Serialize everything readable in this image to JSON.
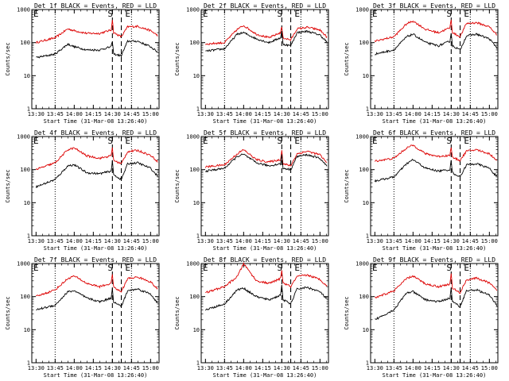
{
  "figure": {
    "x_tick_labels": [
      "13:30",
      "13:45",
      "14:00",
      "14:15",
      "14:30",
      "14:45",
      "15:00"
    ],
    "y_tick_labels": [
      "1",
      "10",
      "100",
      "1000"
    ],
    "ylabel": "Counts/sec",
    "xlabel": "Start Time (31-Mar-08 13:26:40)",
    "markers": {
      "left": "E",
      "mid": "S",
      "right": "E"
    }
  },
  "colors": {
    "events": "#000000",
    "lld": "#dd0000",
    "axes": "#000000"
  },
  "chart_data": [
    {
      "type": "line",
      "title": "Det 1f BLACK = Events, RED = LLD",
      "xlabel": "Start Time (31-Mar-08 13:26:40)",
      "ylabel": "Counts/sec",
      "y_scale": "log",
      "ylim": [
        1,
        1000
      ],
      "x_range": [
        "13:26:40",
        "15:06:40"
      ],
      "x": [
        "13:30",
        "13:45",
        "13:55",
        "14:00",
        "14:10",
        "14:20",
        "14:29",
        "14:30",
        "14:31",
        "14:37",
        "14:42",
        "14:50",
        "15:00",
        "15:06"
      ],
      "series": [
        {
          "name": "Events",
          "values": [
            35,
            45,
            90,
            75,
            60,
            60,
            75,
            110,
            45,
            40,
            110,
            110,
            75,
            50
          ]
        },
        {
          "name": "LLD",
          "values": [
            100,
            140,
            260,
            230,
            190,
            190,
            240,
            500,
            200,
            150,
            300,
            310,
            230,
            160
          ]
        }
      ],
      "vlines": {
        "dotted": [
          "13:45",
          "14:45"
        ],
        "dashed": [
          "14:30",
          "14:37"
        ]
      }
    },
    {
      "type": "line",
      "title": "Det 2f BLACK = Events, RED = LLD",
      "xlabel": "Start Time (31-Mar-08 13:26:40)",
      "ylabel": "Counts/sec",
      "y_scale": "log",
      "ylim": [
        1,
        1000
      ],
      "x_range": [
        "13:26:40",
        "15:06:40"
      ],
      "x": [
        "13:30",
        "13:45",
        "13:55",
        "14:00",
        "14:10",
        "14:20",
        "14:29",
        "14:30",
        "14:31",
        "14:37",
        "14:42",
        "14:50",
        "15:00",
        "15:06"
      ],
      "series": [
        {
          "name": "Events",
          "values": [
            55,
            65,
            180,
            200,
            130,
            100,
            140,
            220,
            90,
            80,
            200,
            220,
            170,
            100
          ]
        },
        {
          "name": "LLD",
          "values": [
            90,
            100,
            250,
            330,
            180,
            140,
            200,
            300,
            140,
            120,
            260,
            290,
            240,
            140
          ]
        }
      ],
      "vlines": {
        "dotted": [
          "13:45",
          "14:45"
        ],
        "dashed": [
          "14:30",
          "14:37"
        ]
      }
    },
    {
      "type": "line",
      "title": "Det 3f BLACK = Events, RED = LLD",
      "xlabel": "Start Time (31-Mar-08 13:26:40)",
      "ylabel": "Counts/sec",
      "y_scale": "log",
      "ylim": [
        1,
        1000
      ],
      "x_range": [
        "13:26:40",
        "15:06:40"
      ],
      "x": [
        "13:30",
        "13:45",
        "13:55",
        "14:00",
        "14:10",
        "14:20",
        "14:29",
        "14:30",
        "14:31",
        "14:37",
        "14:42",
        "14:50",
        "15:00",
        "15:06"
      ],
      "series": [
        {
          "name": "Events",
          "values": [
            45,
            60,
            150,
            180,
            100,
            80,
            110,
            200,
            80,
            60,
            160,
            180,
            130,
            70
          ]
        },
        {
          "name": "LLD",
          "values": [
            110,
            150,
            370,
            450,
            250,
            200,
            280,
            500,
            200,
            150,
            380,
            400,
            300,
            170
          ]
        }
      ],
      "vlines": {
        "dotted": [
          "13:45",
          "14:45"
        ],
        "dashed": [
          "14:30",
          "14:37"
        ]
      }
    },
    {
      "type": "line",
      "title": "Det 4f BLACK = Events, RED = LLD",
      "xlabel": "Start Time (31-Mar-08 13:26:40)",
      "ylabel": "Counts/sec",
      "y_scale": "log",
      "ylim": [
        1,
        1000
      ],
      "x_range": [
        "13:26:40",
        "15:06:40"
      ],
      "x": [
        "13:30",
        "13:45",
        "13:55",
        "14:00",
        "14:10",
        "14:20",
        "14:29",
        "14:30",
        "14:31",
        "14:37",
        "14:42",
        "14:50",
        "15:00",
        "15:06"
      ],
      "series": [
        {
          "name": "Events",
          "values": [
            30,
            50,
            130,
            140,
            80,
            75,
            90,
            180,
            70,
            50,
            150,
            160,
            110,
            60
          ]
        },
        {
          "name": "LLD",
          "values": [
            100,
            160,
            400,
            450,
            260,
            220,
            260,
            480,
            190,
            150,
            350,
            380,
            270,
            170
          ]
        }
      ],
      "vlines": {
        "dotted": [
          "13:45",
          "14:45"
        ],
        "dashed": [
          "14:30",
          "14:37"
        ]
      }
    },
    {
      "type": "line",
      "title": "Det 5f BLACK = Events, RED = LLD",
      "xlabel": "Start Time (31-Mar-08 13:26:40)",
      "ylabel": "Counts/sec",
      "y_scale": "log",
      "ylim": [
        1,
        1000
      ],
      "x_range": [
        "13:26:40",
        "15:06:40"
      ],
      "x": [
        "13:30",
        "13:45",
        "13:55",
        "14:00",
        "14:10",
        "14:20",
        "14:29",
        "14:30",
        "14:31",
        "14:37",
        "14:42",
        "14:50",
        "15:00",
        "15:06"
      ],
      "series": [
        {
          "name": "Events",
          "values": [
            90,
            110,
            250,
            290,
            160,
            130,
            150,
            280,
            110,
            100,
            250,
            280,
            220,
            120
          ]
        },
        {
          "name": "LLD",
          "values": [
            120,
            140,
            300,
            400,
            200,
            170,
            200,
            380,
            150,
            130,
            300,
            360,
            280,
            150
          ]
        }
      ],
      "vlines": {
        "dotted": [
          "13:45",
          "14:45"
        ],
        "dashed": [
          "14:30",
          "14:37"
        ]
      }
    },
    {
      "type": "line",
      "title": "Det 6f BLACK = Events, RED = LLD",
      "xlabel": "Start Time (31-Mar-08 13:26:40)",
      "ylabel": "Counts/sec",
      "y_scale": "log",
      "ylim": [
        1,
        1000
      ],
      "x_range": [
        "13:26:40",
        "15:06:40"
      ],
      "x": [
        "13:30",
        "13:45",
        "13:55",
        "14:00",
        "14:10",
        "14:20",
        "14:29",
        "14:30",
        "14:31",
        "14:37",
        "14:42",
        "14:50",
        "15:00",
        "15:06"
      ],
      "series": [
        {
          "name": "Events",
          "values": [
            45,
            60,
            150,
            200,
            110,
            90,
            100,
            190,
            80,
            60,
            140,
            150,
            110,
            60
          ]
        },
        {
          "name": "LLD",
          "values": [
            180,
            220,
            450,
            550,
            300,
            250,
            270,
            500,
            230,
            190,
            360,
            400,
            300,
            190
          ]
        }
      ],
      "vlines": {
        "dotted": [
          "13:45",
          "14:45"
        ],
        "dashed": [
          "14:30",
          "14:37"
        ]
      }
    },
    {
      "type": "line",
      "title": "Det 7f BLACK = Events, RED = LLD",
      "xlabel": "Start Time (31-Mar-08 13:26:40)",
      "ylabel": "Counts/sec",
      "y_scale": "log",
      "ylim": [
        1,
        1000
      ],
      "x_range": [
        "13:26:40",
        "15:06:40"
      ],
      "x": [
        "13:30",
        "13:45",
        "13:55",
        "14:00",
        "14:10",
        "14:20",
        "14:29",
        "14:30",
        "14:31",
        "14:37",
        "14:42",
        "14:50",
        "15:00",
        "15:06"
      ],
      "series": [
        {
          "name": "Events",
          "values": [
            40,
            55,
            140,
            150,
            90,
            70,
            90,
            180,
            70,
            50,
            150,
            170,
            120,
            60
          ]
        },
        {
          "name": "LLD",
          "values": [
            100,
            160,
            350,
            420,
            250,
            200,
            250,
            500,
            190,
            140,
            350,
            390,
            280,
            160
          ]
        }
      ],
      "vlines": {
        "dotted": [
          "13:45",
          "14:45"
        ],
        "dashed": [
          "14:30",
          "14:37"
        ]
      }
    },
    {
      "type": "line",
      "title": "Det 8f BLACK = Events, RED = LLD",
      "xlabel": "Start Time (31-Mar-08 13:26:40)",
      "ylabel": "Counts/sec",
      "y_scale": "log",
      "ylim": [
        1,
        1000
      ],
      "x_range": [
        "13:26:40",
        "15:06:40"
      ],
      "x": [
        "13:30",
        "13:45",
        "13:55",
        "14:00",
        "14:10",
        "14:20",
        "14:29",
        "14:30",
        "14:31",
        "14:37",
        "14:42",
        "14:50",
        "15:00",
        "15:06"
      ],
      "series": [
        {
          "name": "Events",
          "values": [
            40,
            60,
            160,
            180,
            100,
            80,
            110,
            240,
            80,
            60,
            170,
            190,
            140,
            80
          ]
        },
        {
          "name": "LLD",
          "values": [
            130,
            200,
            400,
            1000,
            300,
            250,
            350,
            650,
            260,
            200,
            400,
            450,
            330,
            200
          ]
        }
      ],
      "vlines": {
        "dotted": [
          "13:45",
          "14:45"
        ],
        "dashed": [
          "14:30",
          "14:37"
        ]
      }
    },
    {
      "type": "line",
      "title": "Det 9f BLACK = Events, RED = LLD",
      "xlabel": "Start Time (31-Mar-08 13:26:40)",
      "ylabel": "Counts/sec",
      "y_scale": "log",
      "ylim": [
        1,
        1000
      ],
      "x_range": [
        "13:26:40",
        "15:06:40"
      ],
      "x": [
        "13:30",
        "13:45",
        "13:55",
        "14:00",
        "14:10",
        "14:20",
        "14:29",
        "14:30",
        "14:31",
        "14:37",
        "14:42",
        "14:50",
        "15:00",
        "15:06"
      ],
      "series": [
        {
          "name": "Events",
          "values": [
            20,
            40,
            130,
            140,
            80,
            70,
            90,
            180,
            70,
            50,
            150,
            160,
            110,
            55
          ]
        },
        {
          "name": "LLD",
          "values": [
            90,
            150,
            350,
            420,
            240,
            200,
            240,
            480,
            180,
            130,
            320,
            360,
            260,
            150
          ]
        }
      ],
      "vlines": {
        "dotted": [
          "13:45",
          "14:45"
        ],
        "dashed": [
          "14:30",
          "14:37"
        ]
      }
    }
  ]
}
